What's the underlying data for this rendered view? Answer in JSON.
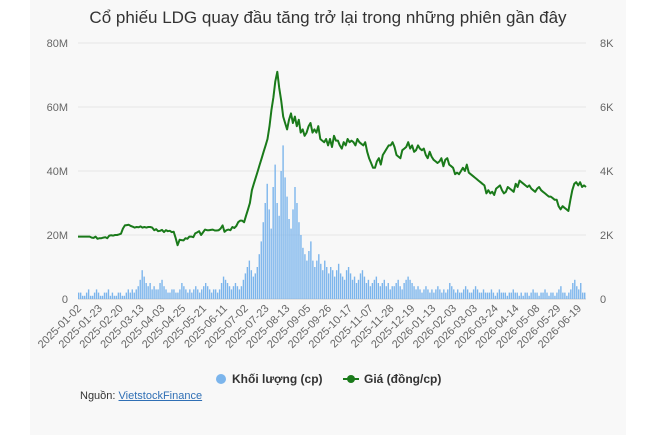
{
  "chart_data": {
    "type": "bar+line",
    "title": "Cổ phiếu LDG quay đầu tăng trở lại trong những phiên gần đây",
    "x_tick_labels": [
      "2025-01-02",
      "2025-01-23",
      "2025-02-20",
      "2025-03-13",
      "2025-04-03",
      "2025-04-25",
      "2025-05-21",
      "2025-06-11",
      "2025-07-02",
      "2025-07-23",
      "2025-08-13",
      "2025-09-05",
      "2025-09-26",
      "2025-10-17",
      "2025-11-07",
      "2025-11-28",
      "2025-12-19",
      "2026-01-13",
      "2026-02-03",
      "2026-03-03",
      "2026-03-24",
      "2026-04-14",
      "2026-05-08",
      "2026-05-29",
      "2026-06-19"
    ],
    "y_left": {
      "ticks": [
        "0",
        "20M",
        "40M",
        "60M",
        "80M"
      ],
      "range": [
        0,
        80000000
      ]
    },
    "y_right": {
      "ticks": [
        "0",
        "2K",
        "4K",
        "6K",
        "8K"
      ],
      "range": [
        0,
        8000
      ]
    },
    "series": [
      {
        "name": "Khối lượng (cp)",
        "color": "#7cb5ec",
        "type": "column",
        "values": [
          2,
          2,
          1,
          1,
          2,
          3,
          1,
          1,
          2,
          3,
          2,
          1,
          1,
          2,
          2,
          3,
          1,
          2,
          1,
          1,
          2,
          2,
          1,
          1,
          2,
          3,
          2,
          3,
          2,
          3,
          4,
          6,
          9,
          7,
          5,
          4,
          5,
          3,
          4,
          3,
          3,
          5,
          6,
          4,
          3,
          2,
          2,
          3,
          3,
          2,
          2,
          3,
          5,
          4,
          3,
          2,
          3,
          2,
          3,
          4,
          3,
          2,
          3,
          4,
          5,
          4,
          3,
          2,
          3,
          3,
          2,
          3,
          5,
          7,
          6,
          5,
          4,
          3,
          4,
          5,
          4,
          3,
          4,
          6,
          8,
          10,
          12,
          9,
          7,
          8,
          10,
          14,
          18,
          24,
          30,
          36,
          28,
          22,
          35,
          42,
          30,
          26,
          40,
          48,
          38,
          32,
          25,
          22,
          28,
          35,
          30,
          24,
          20,
          16,
          14,
          12,
          15,
          18,
          12,
          10,
          12,
          14,
          11,
          9,
          12,
          10,
          8,
          10,
          9,
          7,
          9,
          11,
          8,
          7,
          6,
          9,
          10,
          8,
          6,
          7,
          5,
          6,
          8,
          9,
          7,
          5,
          6,
          4,
          5,
          6,
          7,
          5,
          4,
          5,
          6,
          4,
          5,
          3,
          4,
          4,
          5,
          6,
          4,
          3,
          5,
          6,
          7,
          6,
          5,
          4,
          3,
          4,
          3,
          2,
          3,
          4,
          3,
          2,
          3,
          2,
          3,
          4,
          3,
          2,
          3,
          2,
          3,
          5,
          4,
          3,
          2,
          3,
          2,
          2,
          3,
          4,
          3,
          2,
          2,
          3,
          4,
          3,
          2,
          2,
          3,
          2,
          2,
          2,
          3,
          2,
          1,
          2,
          3,
          2,
          2,
          2,
          1,
          2,
          2,
          3,
          2,
          2,
          1,
          2,
          1,
          2,
          2,
          1,
          2,
          3,
          2,
          2,
          1,
          2,
          2,
          3,
          2,
          1,
          2,
          2,
          1,
          2,
          3,
          4,
          2,
          2,
          1,
          2,
          3,
          5,
          6,
          4,
          3,
          5,
          2,
          2
        ]
      },
      {
        "name": "Giá (đồng/cp)",
        "color": "#1a7a1a",
        "type": "line",
        "values": [
          1950,
          1950,
          1950,
          1950,
          1950,
          1950,
          1950,
          1920,
          1910,
          1950,
          1880,
          1900,
          1900,
          1920,
          1930,
          1900,
          1980,
          1990,
          1980,
          2000,
          2000,
          2020,
          2040,
          2200,
          2300,
          2310,
          2320,
          2280,
          2260,
          2230,
          2250,
          2240,
          2270,
          2230,
          2250,
          2230,
          2250,
          2250,
          2230,
          2150,
          2180,
          2120,
          2130,
          2160,
          2090,
          2150,
          2120,
          2130,
          2090,
          2100,
          1900,
          1680,
          1850,
          1840,
          1830,
          1900,
          1880,
          1950,
          1950,
          1930,
          2050,
          2080,
          2120,
          2000,
          2080,
          2170,
          2150,
          2150,
          2160,
          2170,
          2140,
          2140,
          2150,
          2200,
          2300,
          2100,
          2150,
          2170,
          2150,
          2250,
          2220,
          2280,
          2400,
          2450,
          2450,
          2400,
          2600,
          2800,
          3000,
          3400,
          3600,
          3800,
          4000,
          4200,
          4400,
          4600,
          4800,
          5000,
          5400,
          5900,
          6300,
          6800,
          7100,
          6600,
          6200,
          5700,
          5500,
          5300,
          5600,
          5800,
          5500,
          5700,
          5400,
          5600,
          5200,
          5300,
          5100,
          5200,
          5400,
          5500,
          5200,
          5300,
          5200,
          5400,
          5000,
          4950,
          4900,
          5000,
          4800,
          5000,
          4750,
          5100,
          4950,
          4950,
          4800,
          4700,
          4900,
          4800,
          5000,
          4900,
          4950,
          4900,
          4800,
          5000,
          4900,
          4850,
          4800,
          4900,
          4600,
          4400,
          4250,
          4100,
          4100,
          4300,
          4400,
          4200,
          4500,
          4600,
          4700,
          4800,
          4800,
          4900,
          4750,
          4500,
          4450,
          4400,
          4650,
          4700,
          4750,
          4900,
          4700,
          4800,
          4600,
          4650,
          4800,
          4700,
          4650,
          4700,
          4500,
          4400,
          4600,
          4450,
          4350,
          4300,
          4250,
          4300,
          4400,
          4150,
          4350,
          4400,
          4200,
          4150,
          4100,
          3900,
          3950,
          3900,
          4000,
          4100,
          4000,
          4200,
          3950,
          3900,
          3850,
          3800,
          3750,
          3700,
          3650,
          3600,
          3550,
          3300,
          3400,
          3300,
          3350,
          3250,
          3450,
          3500,
          3550,
          3400,
          3300,
          3350,
          3500,
          3450,
          3400,
          3350,
          3600,
          3500,
          3700,
          3650,
          3600,
          3550,
          3500,
          3550,
          3450,
          3400,
          3350,
          3450,
          3500,
          3400,
          3350,
          3300,
          3250,
          3200,
          3200,
          3150,
          3100,
          3100,
          2900,
          2800,
          2900,
          2850,
          2800,
          2750,
          3100,
          3400,
          3600,
          3650,
          3550,
          3650,
          3500,
          3550,
          3500
        ]
      }
    ],
    "legend_position": "bottom-center",
    "grid": true
  },
  "legend": {
    "volume_label": "Khối lượng (cp)",
    "price_label": "Giá (đồng/cp)"
  },
  "source": {
    "prefix": "Nguồn: ",
    "link_text": "VietstockFinance"
  }
}
